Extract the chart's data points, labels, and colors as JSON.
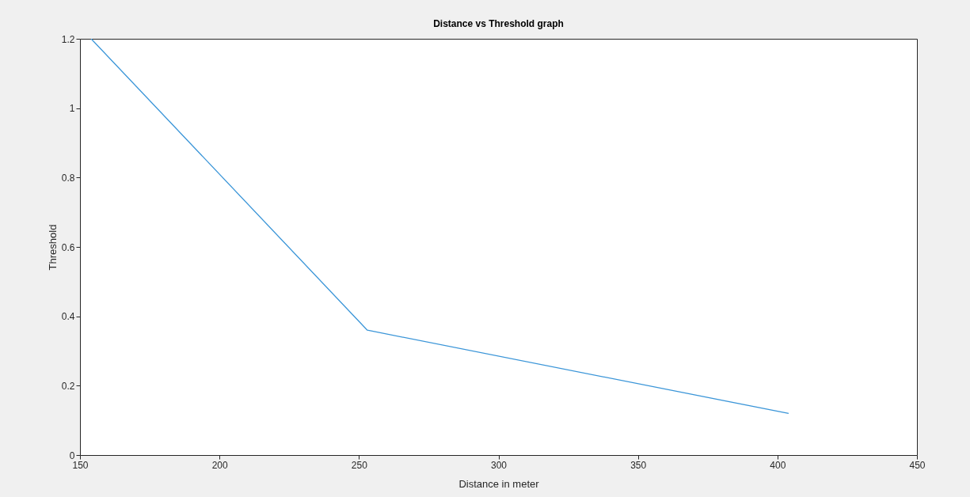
{
  "chart_data": {
    "type": "line",
    "title": "Distance vs Threshold graph",
    "xlabel": "Distance in meter",
    "ylabel": "Threshold",
    "x": [
      154,
      253,
      404
    ],
    "series": [
      {
        "color": "#3a95d8",
        "values": [
          1.2,
          0.36,
          0.12
        ]
      }
    ],
    "xlim": [
      150,
      450
    ],
    "xticks": [
      150,
      200,
      250,
      300,
      350,
      400,
      450
    ],
    "ylim": [
      0,
      1.2
    ],
    "yticks": [
      0,
      0.2,
      0.4,
      0.6,
      0.8,
      1,
      1.2
    ],
    "grid": false
  }
}
